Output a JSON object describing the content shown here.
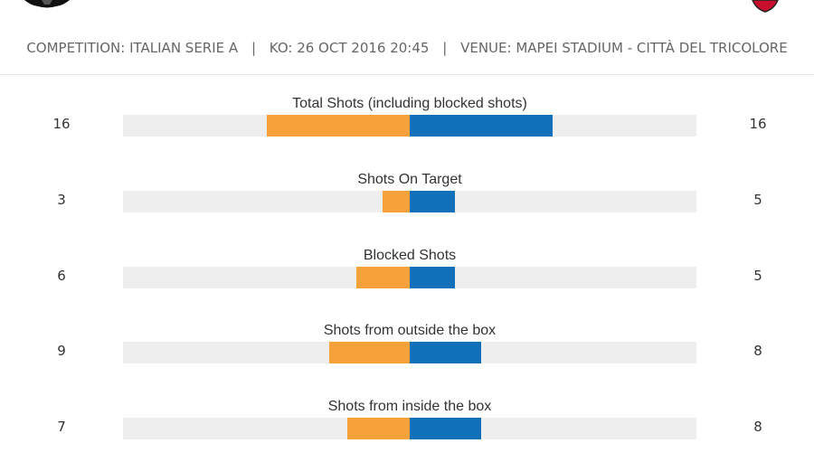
{
  "header": {
    "competition_label": "COMPETITION:",
    "competition": "ITALIAN SERIE A",
    "ko_label": "KO:",
    "ko": "26 OCT 2016 20:45",
    "venue_label": "VENUE:",
    "venue": "MAPEI STADIUM - CITTÀ DEL TRICOLORE",
    "separator": "|"
  },
  "colors": {
    "home": "#f7a13a",
    "away": "#1071ba",
    "track": "#eeeeee"
  },
  "crests": {
    "home": "team-crest-icon",
    "away": "team-crest-icon"
  },
  "stats": [
    {
      "title": "Total Shots (including blocked shots)",
      "home": 16,
      "away": 16,
      "home_display": "16",
      "away_display": "16"
    },
    {
      "title": "Shots On Target",
      "home": 3,
      "away": 5,
      "home_display": "3",
      "away_display": "5"
    },
    {
      "title": "Blocked Shots",
      "home": 6,
      "away": 5,
      "home_display": "6",
      "away_display": "5"
    },
    {
      "title": "Shots from outside the box",
      "home": 9,
      "away": 8,
      "home_display": "9",
      "away_display": "8"
    },
    {
      "title": "Shots from inside the box",
      "home": 7,
      "away": 8,
      "home_display": "7",
      "away_display": "8"
    }
  ]
}
